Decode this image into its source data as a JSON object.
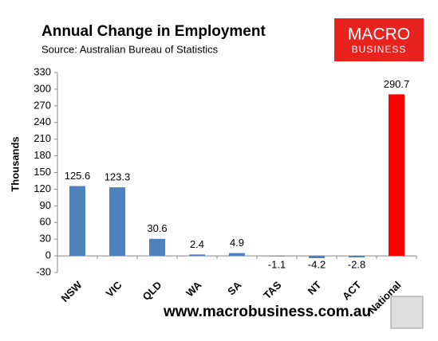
{
  "chart_data": {
    "type": "bar",
    "title": "Annual Change in Employment",
    "subtitle": "Source: Australian Bureau of Statistics",
    "y_label": "Thousands",
    "footer": "www.macrobusiness.com.au",
    "logo": {
      "line1": "MACRO",
      "line2": "BUSINESS"
    },
    "categories": [
      "NSW",
      "VIC",
      "QLD",
      "WA",
      "SA",
      "TAS",
      "NT",
      "ACT",
      "National"
    ],
    "values": [
      125.6,
      123.3,
      30.6,
      2.4,
      4.9,
      -1.1,
      -4.2,
      -2.8,
      290.7
    ],
    "colors": [
      "#4f81bd",
      "#4f81bd",
      "#4f81bd",
      "#4f81bd",
      "#4f81bd",
      "#e0504a",
      "#4f81bd",
      "#4f81bd",
      "#ff0000"
    ],
    "ylim": [
      -30,
      330
    ],
    "yticks": [
      -30,
      0,
      30,
      60,
      90,
      120,
      150,
      180,
      210,
      240,
      270,
      300,
      330
    ],
    "grid": false
  }
}
